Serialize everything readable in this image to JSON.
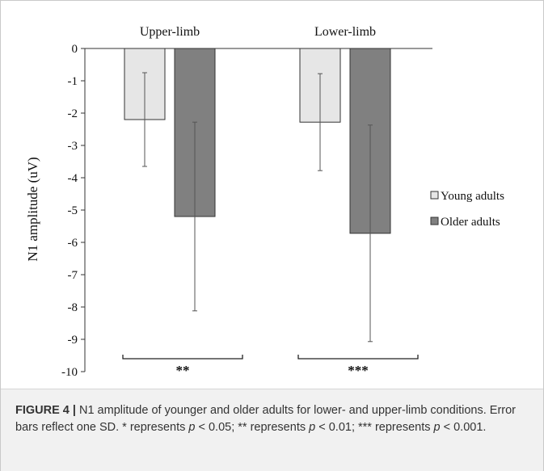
{
  "chart_data": {
    "type": "bar",
    "categories": [
      "Upper-limb",
      "Lower-limb"
    ],
    "series": [
      {
        "name": "Young adults",
        "values": [
          -2.2,
          -2.28
        ],
        "sd": [
          1.45,
          1.5
        ],
        "color": "#e6e6e6"
      },
      {
        "name": "Older adults",
        "values": [
          -5.2,
          -5.72
        ],
        "sd": [
          2.92,
          3.35
        ],
        "color": "#808080"
      }
    ],
    "ylabel": "N1 amplitude (uV)",
    "ylim": [
      -10,
      0
    ],
    "yticks": [
      0,
      -1,
      -2,
      -3,
      -4,
      -5,
      -6,
      -7,
      -8,
      -9,
      -10
    ],
    "category_axis_position": "top",
    "legend_position": "right",
    "grid": false,
    "significance": [
      "**",
      "***"
    ]
  },
  "caption": {
    "label": "FIGURE 4 |",
    "text_main": " N1 amplitude of younger and older adults for lower- and upper-limb conditions. Error bars reflect one SD. * represents ",
    "p1": "p",
    "t1": " < 0.05; ** represents ",
    "p2": "p",
    "t2": " < 0.01; *** represents ",
    "p3": "p",
    "t3": " < 0.001."
  }
}
